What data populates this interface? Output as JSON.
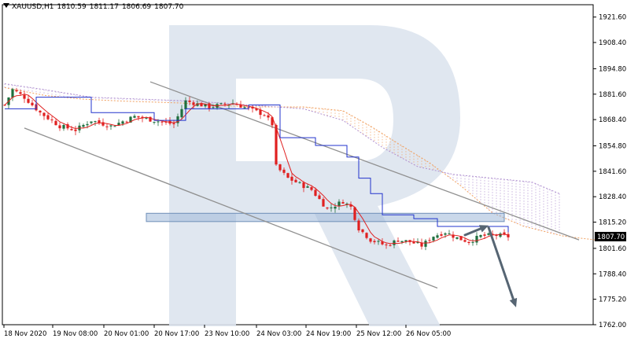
{
  "header": {
    "symbol": "XAUUSD,H1",
    "open": "1810.59",
    "high": "1811.17",
    "low": "1806.69",
    "close": "1807.70"
  },
  "current_price_label": "1807.70",
  "colors": {
    "bull_candle": "#1f6f3e",
    "bear_candle": "#e02020",
    "kijun": "#2233cc",
    "tenkan": "#e02020",
    "cloud_orange": "#f0a060",
    "cloud_purple": "#b090d0",
    "channel": "#909090",
    "zone": "#9fb8d8",
    "arrow": "#566573",
    "watermark": "#dde4ee",
    "price_tag": "#000000"
  },
  "chart_data": {
    "type": "candlestick",
    "symbol": "XAUUSD",
    "timeframe": "H1",
    "ylim": [
      1762.0,
      1928.0
    ],
    "y_ticks": [
      "1921.60",
      "1908.40",
      "1894.80",
      "1881.60",
      "1868.40",
      "1854.80",
      "1841.60",
      "1828.40",
      "1815.20",
      "1801.60",
      "1788.40",
      "1775.20",
      "1762.00"
    ],
    "x_ticks": [
      "18 Nov 2020",
      "19 Nov 08:00",
      "20 Nov 01:00",
      "20 Nov 17:00",
      "23 Nov 10:00",
      "24 Nov 03:00",
      "24 Nov 19:00",
      "25 Nov 12:00",
      "26 Nov 05:00"
    ],
    "bar_count": 129,
    "price_path": [
      [
        0,
        1876.0
      ],
      [
        2,
        1884.0
      ],
      [
        5,
        1880.0
      ],
      [
        9,
        1872.0
      ],
      [
        14,
        1865.0
      ],
      [
        18,
        1863.0
      ],
      [
        22,
        1868.0
      ],
      [
        27,
        1865.0
      ],
      [
        33,
        1870.0
      ],
      [
        38,
        1868.0
      ],
      [
        43,
        1866.0
      ],
      [
        46,
        1878.0
      ],
      [
        52,
        1875.0
      ],
      [
        58,
        1877.0
      ],
      [
        62,
        1874.0
      ],
      [
        66,
        1871.0
      ],
      [
        68,
        1866.0
      ],
      [
        69,
        1844.0
      ],
      [
        72,
        1838.0
      ],
      [
        78,
        1832.0
      ],
      [
        82,
        1822.0
      ],
      [
        86,
        1826.0
      ],
      [
        88,
        1823.0
      ],
      [
        90,
        1812.0
      ],
      [
        93,
        1806.0
      ],
      [
        97,
        1803.0
      ],
      [
        100,
        1806.0
      ],
      [
        103,
        1805.0
      ],
      [
        106,
        1803.0
      ],
      [
        109,
        1808.0
      ],
      [
        112,
        1810.0
      ],
      [
        115,
        1807.0
      ],
      [
        118,
        1805.0
      ],
      [
        121,
        1808.0
      ],
      [
        125,
        1808.5
      ],
      [
        128,
        1807.7
      ]
    ],
    "indicators": {
      "kijun_sen": [
        [
          0,
          1874.0
        ],
        [
          8,
          1880.0
        ],
        [
          22,
          1872.0
        ],
        [
          38,
          1868.0
        ],
        [
          46,
          1874.0
        ],
        [
          62,
          1876.0
        ],
        [
          70,
          1859.0
        ],
        [
          79,
          1855.0
        ],
        [
          87,
          1849.0
        ],
        [
          90,
          1838.0
        ],
        [
          93,
          1830.0
        ],
        [
          96,
          1819.0
        ],
        [
          104,
          1817.0
        ],
        [
          110,
          1813.0
        ],
        [
          128,
          1810.0
        ]
      ],
      "cloud_orange": [
        [
          0,
          1885.0
        ],
        [
          10,
          1881.0
        ],
        [
          20,
          1879.0
        ],
        [
          30,
          1878.0
        ],
        [
          45,
          1877.0
        ],
        [
          62,
          1875.0
        ],
        [
          76,
          1875.0
        ],
        [
          86,
          1873.0
        ],
        [
          93,
          1865.0
        ],
        [
          100,
          1856.0
        ],
        [
          108,
          1846.0
        ],
        [
          116,
          1834.0
        ],
        [
          124,
          1820.0
        ],
        [
          132,
          1813.0
        ],
        [
          142,
          1808.0
        ],
        [
          150,
          1806.0
        ]
      ],
      "cloud_purple": [
        [
          0,
          1887.0
        ],
        [
          10,
          1884.0
        ],
        [
          22,
          1880.0
        ],
        [
          35,
          1879.0
        ],
        [
          48,
          1878.0
        ],
        [
          62,
          1876.0
        ],
        [
          76,
          1874.0
        ],
        [
          86,
          1868.0
        ],
        [
          96,
          1854.0
        ],
        [
          105,
          1844.0
        ],
        [
          114,
          1840.0
        ],
        [
          124,
          1838.0
        ],
        [
          134,
          1836.0
        ],
        [
          141,
          1830.0
        ]
      ]
    },
    "annotations": {
      "channel_upper": [
        [
          37,
          1888.0
        ],
        [
          146,
          1806.0
        ]
      ],
      "channel_lower": [
        [
          5,
          1864.0
        ],
        [
          110,
          1781.0
        ]
      ],
      "resistance_zone": [
        1815.5,
        1819.8
      ],
      "forecast_arrows": [
        [
          [
            117,
            1808.5
          ],
          [
            123,
            1813.5
          ]
        ],
        [
          [
            123,
            1812.5
          ],
          [
            130,
            1771.0
          ]
        ]
      ],
      "current_price": 1807.7
    }
  }
}
